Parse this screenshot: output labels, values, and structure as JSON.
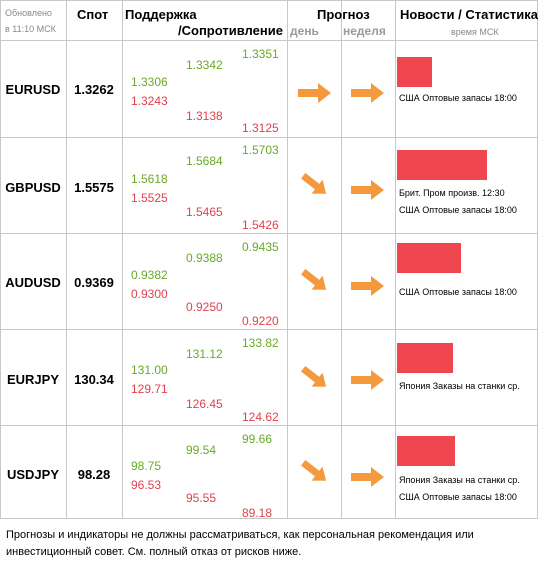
{
  "header": {
    "updated_line1": "Обновлено",
    "updated_line2": "в 11:10 МСК",
    "spot": "Спот",
    "support": "Поддержка",
    "resistance": "/Сопротивление",
    "forecast": "Прогноз",
    "day": "день",
    "week": "неделя",
    "news": "Новости / Статистика",
    "time": "время МСК"
  },
  "colors": {
    "green": "#6aaa27",
    "red": "#e0424e",
    "arrow": "#f59a3c",
    "bar": "#ef4650",
    "grid": "#c8c8c8"
  },
  "rows": [
    {
      "pair": "EURUSD",
      "spot": "1.3262",
      "c1_green": "1.3306",
      "c1_red": "1.3243",
      "c2_green": "1.3342",
      "c2_red": "1.3138",
      "c3_green": "1.3351",
      "c3_red": "1.3125",
      "day_arrow": "arrow-right-icon",
      "week_arrow": "arrow-right-icon",
      "news_level": 0.35,
      "news": [
        "США Оптовые запасы 18:00"
      ]
    },
    {
      "pair": "GBPUSD",
      "spot": "1.5575",
      "c1_green": "1.5618",
      "c1_red": "1.5525",
      "c2_green": "1.5684",
      "c2_red": "1.5465",
      "c3_green": "1.5703",
      "c3_red": "1.5426",
      "day_arrow": "arrow-down-right-icon",
      "week_arrow": "arrow-right-icon",
      "news_level": 0.9,
      "news": [
        "Брит. Пром произв. 12:30",
        "США Оптовые запасы 18:00"
      ]
    },
    {
      "pair": "AUDUSD",
      "spot": "0.9369",
      "c1_green": "0.9382",
      "c1_red": "0.9300",
      "c2_green": "0.9388",
      "c2_red": "0.9250",
      "c3_green": "0.9435",
      "c3_red": "0.9220",
      "day_arrow": "arrow-down-right-icon",
      "week_arrow": "arrow-right-icon",
      "news_level": 0.65,
      "news": [
        "США Оптовые запасы 18:00"
      ]
    },
    {
      "pair": "EURJPY",
      "spot": "130.34",
      "c1_green": "131.00",
      "c1_red": "129.71",
      "c2_green": "131.12",
      "c2_red": "126.45",
      "c3_green": "133.82",
      "c3_red": "124.62",
      "day_arrow": "arrow-down-right-icon",
      "week_arrow": "arrow-right-icon",
      "news_level": 0.55,
      "news": [
        "Япония Заказы на станки ср."
      ]
    },
    {
      "pair": "USDJPY",
      "spot": "98.28",
      "c1_green": "98.75",
      "c1_red": "96.53",
      "c2_green": "99.54",
      "c2_red": "95.55",
      "c3_green": "99.66",
      "c3_red": "89.18",
      "day_arrow": "arrow-down-right-icon",
      "week_arrow": "arrow-right-icon",
      "news_level": 0.58,
      "news": [
        "Япония Заказы на станки ср.",
        "США Оптовые запасы 18:00"
      ]
    }
  ],
  "disclaimer": "Прогнозы и индикаторы не должны рассматриваться, как персональная рекомендация или инвестиционный совет. См. полный отказ от рисков ниже."
}
